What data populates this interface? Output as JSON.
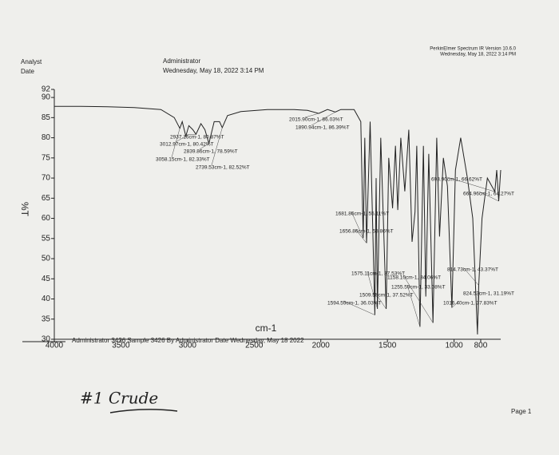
{
  "header": {
    "analyst_label": "Analyst",
    "date_label": "Date",
    "analyst": "Administrator",
    "date": "Wednesday, May 18, 2022 3:14 PM",
    "software": "PerkinElmer Spectrum IR Version 10.6.0",
    "software_date": "Wednesday, May 18, 2022 3:14 PM"
  },
  "chart_data": {
    "type": "line",
    "y_label": "%T",
    "x_label": "cm-1",
    "color": "#222222",
    "xlim": [
      4000,
      650
    ],
    "ylim": [
      30,
      92
    ],
    "xticks": [
      4000,
      3500,
      3000,
      2500,
      2000,
      1500,
      1000,
      800
    ],
    "yticks": [
      30,
      35,
      40,
      45,
      50,
      55,
      60,
      65,
      70,
      75,
      80,
      85,
      90,
      92
    ],
    "x": [
      4000,
      3800,
      3600,
      3400,
      3200,
      3100,
      3058.15,
      3040,
      3012.97,
      2990,
      2960,
      2937.16,
      2900,
      2870,
      2839.86,
      2800,
      2760,
      2739.53,
      2700,
      2600,
      2400,
      2200,
      2100,
      2015.9,
      1950,
      1890.94,
      1850,
      1750,
      1700,
      1681.86,
      1670,
      1656.86,
      1630,
      1594.59,
      1585,
      1575.11,
      1550,
      1509.58,
      1490,
      1461.19,
      1440,
      1422.68,
      1400,
      1369.77,
      1340,
      1314.98,
      1293.03,
      1280,
      1255.59,
      1230,
      1212.39,
      1190,
      1158.1,
      1130,
      1109.22,
      1080,
      1050,
      1016.4,
      990,
      950,
      900,
      860,
      824.53,
      814.73,
      790,
      750,
      693.9,
      680,
      664.96,
      650
    ],
    "values": [
      87.8,
      87.8,
      87.7,
      87.5,
      87,
      85,
      82.33,
      84,
      80.42,
      83,
      82,
      80.87,
      83.5,
      82,
      78.59,
      84,
      84,
      82.52,
      85.5,
      86.5,
      87,
      87,
      86.8,
      86.03,
      87,
      86.39,
      87,
      87,
      84,
      55.11,
      80,
      53.86,
      84,
      36.03,
      70,
      37.53,
      80,
      37.52,
      75,
      62.5,
      78,
      62.07,
      80,
      66.7,
      82,
      54.16,
      61.6,
      78,
      33.08,
      78,
      40.59,
      76,
      34.06,
      80,
      55.5,
      75,
      68,
      37.83,
      72,
      80,
      70,
      60,
      31.19,
      43.37,
      60,
      70,
      66.62,
      72,
      64.27,
      72
    ],
    "peaks": [
      {
        "x": 3058.15,
        "value": 82.33,
        "label": "3058.15cm-1, 82.33%T"
      },
      {
        "x": 3012.97,
        "value": 80.42,
        "label": "3012.97cm-1, 80.42%T"
      },
      {
        "x": 2937.16,
        "value": 80.87,
        "label": "2937.16cm-1, 80.87%T"
      },
      {
        "x": 2839.86,
        "value": 78.59,
        "label": "2839.86cm-1, 78.59%T"
      },
      {
        "x": 2739.53,
        "value": 82.52,
        "label": "2739.53cm-1, 82.52%T"
      },
      {
        "x": 2015.9,
        "value": 86.03,
        "label": "2015.90cm-1, 86.03%T"
      },
      {
        "x": 1890.94,
        "value": 86.39,
        "label": "1890.94cm-1, 86.39%T"
      },
      {
        "x": 1681.86,
        "value": 55.11,
        "label": "1681.86cm-1, 55.11%T"
      },
      {
        "x": 1656.86,
        "value": 53.86,
        "label": "1656.86cm-1, 53.86%T"
      },
      {
        "x": 1575.11,
        "value": 37.53,
        "label": "1575.11cm-1, 37.53%T"
      },
      {
        "x": 1594.59,
        "value": 36.03,
        "label": "1594.59cm-1, 36.03%T"
      },
      {
        "x": 1509.58,
        "value": 37.52,
        "label": "1509.58cm-1, 37.52%T"
      },
      {
        "x": 1255.59,
        "value": 33.08,
        "label": "1255.59cm-1, 33.08%T"
      },
      {
        "x": 1158.1,
        "value": 34.06,
        "label": "1158.10cm-1, 34.06%T"
      },
      {
        "x": 1016.4,
        "value": 37.83,
        "label": "1016.40cm-1, 37.83%T"
      },
      {
        "x": 824.53,
        "value": 31.19,
        "label": "824.53cm-1, 31.19%T"
      },
      {
        "x": 814.73,
        "value": 43.37,
        "label": "814.73cm-1, 43.37%T"
      },
      {
        "x": 693.9,
        "value": 66.62,
        "label": "693.90cm-1, 66.62%T"
      },
      {
        "x": 664.96,
        "value": 64.27,
        "label": "664.96cm-1, 64.27%T"
      }
    ]
  },
  "footer": {
    "text": "Administrator 3426   Sample 3426 By Administrator Date Wednesday, May 18 2022",
    "handwriting": "#1 Crude",
    "page": "Page 1"
  }
}
